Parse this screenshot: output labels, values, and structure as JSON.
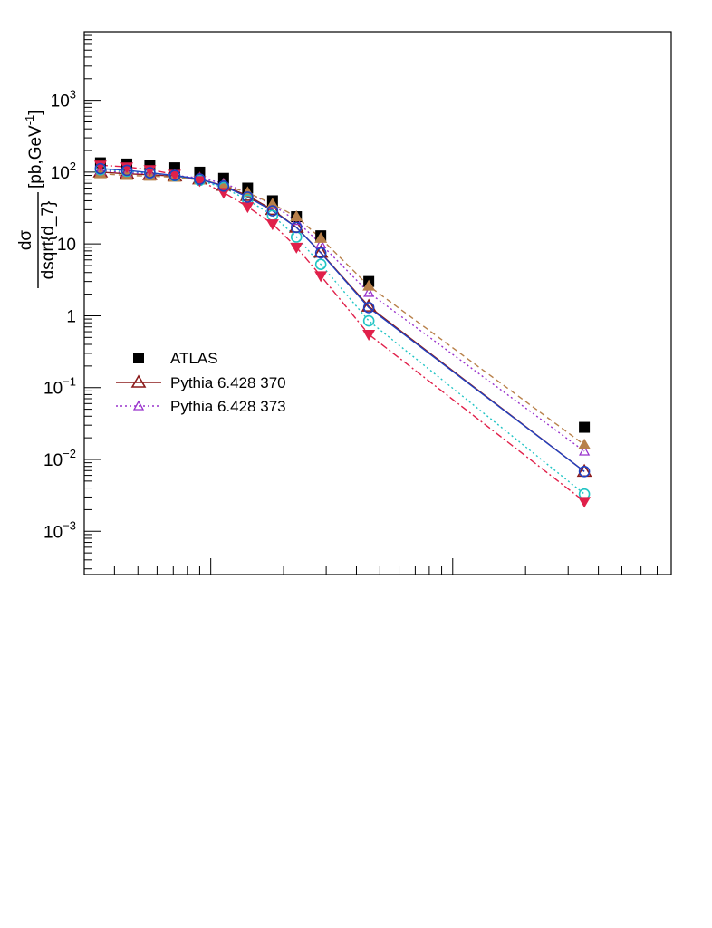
{
  "chart_data": {
    "type": "scatter",
    "title": "",
    "xlabel": "",
    "ylabel_num": "dσ",
    "ylabel_den": "dsqrt{d_7}",
    "ylabel_unit_pre": " [pb,GeV",
    "ylabel_unit_exp": "-1",
    "ylabel_unit_post": "]",
    "y_scale": "log",
    "x_scale": "log",
    "ylim": [
      0.00025,
      9000
    ],
    "xlim": [
      0.3,
      80
    ],
    "y_ticks": [
      {
        "value": 0.001,
        "base": "10",
        "exp": "−3"
      },
      {
        "value": 0.01,
        "base": "10",
        "exp": "−2"
      },
      {
        "value": 0.1,
        "base": "10",
        "exp": "−1"
      },
      {
        "value": 1,
        "base": "1",
        "exp": ""
      },
      {
        "value": 10,
        "base": "10",
        "exp": ""
      },
      {
        "value": 100,
        "base": "10",
        "exp": "2"
      },
      {
        "value": 1000,
        "base": "10",
        "exp": "3"
      }
    ],
    "x_major_ticks": [
      1,
      10
    ],
    "x_tick_labels_shown": false,
    "x": [
      0.35,
      0.45,
      0.56,
      0.71,
      0.9,
      1.13,
      1.42,
      1.8,
      2.26,
      2.85,
      4.5,
      35
    ],
    "series": [
      {
        "name": "ATLAS",
        "marker": "square-filled",
        "color": "#000000",
        "line": "none",
        "values": [
          135,
          130,
          125,
          115,
          100,
          82,
          60,
          40,
          24,
          13,
          3.0,
          0.028
        ]
      },
      {
        "name": "Pythia 6.428 370",
        "marker": "triangle-open",
        "color": "#8b1a1a",
        "line": "solid",
        "values": [
          100,
          95,
          92,
          88,
          80,
          65,
          47,
          30,
          17,
          7.6,
          1.35,
          0.0068
        ]
      },
      {
        "name": "Pythia 6.428 373",
        "marker": "triangle-open-small",
        "color": "#9932cc",
        "line": "dotted",
        "values": [
          105,
          98,
          95,
          90,
          83,
          70,
          52,
          35,
          21,
          10,
          2.1,
          0.013
        ]
      },
      {
        "name": "",
        "marker": "triangle-filled",
        "color": "#b8804a",
        "line": "dashed",
        "values": [
          95,
          90,
          88,
          85,
          78,
          66,
          52,
          36,
          24,
          12,
          2.6,
          0.016
        ]
      },
      {
        "name": "",
        "marker": "circle-open",
        "color": "#20c4c4",
        "line": "dotted",
        "values": [
          108,
          103,
          97,
          89,
          77,
          61,
          41,
          25,
          12.5,
          5.2,
          0.85,
          0.0033
        ]
      },
      {
        "name": "",
        "marker": "triangle-down-filled",
        "color": "#e0204a",
        "line": "dashdot",
        "values": [
          125,
          118,
          108,
          93,
          76,
          52,
          33,
          19,
          9,
          3.6,
          0.55,
          0.0026
        ]
      },
      {
        "name": "",
        "marker": "circle-open",
        "color": "#2040c0",
        "line": "solid",
        "values": [
          112,
          106,
          98,
          90,
          80,
          64,
          45,
          29,
          17,
          7.5,
          1.3,
          0.0068
        ]
      }
    ],
    "legend": {
      "placement": "left-middle",
      "entries": [
        "ATLAS",
        "Pythia 6.428 370",
        "Pythia 6.428 373"
      ]
    }
  }
}
